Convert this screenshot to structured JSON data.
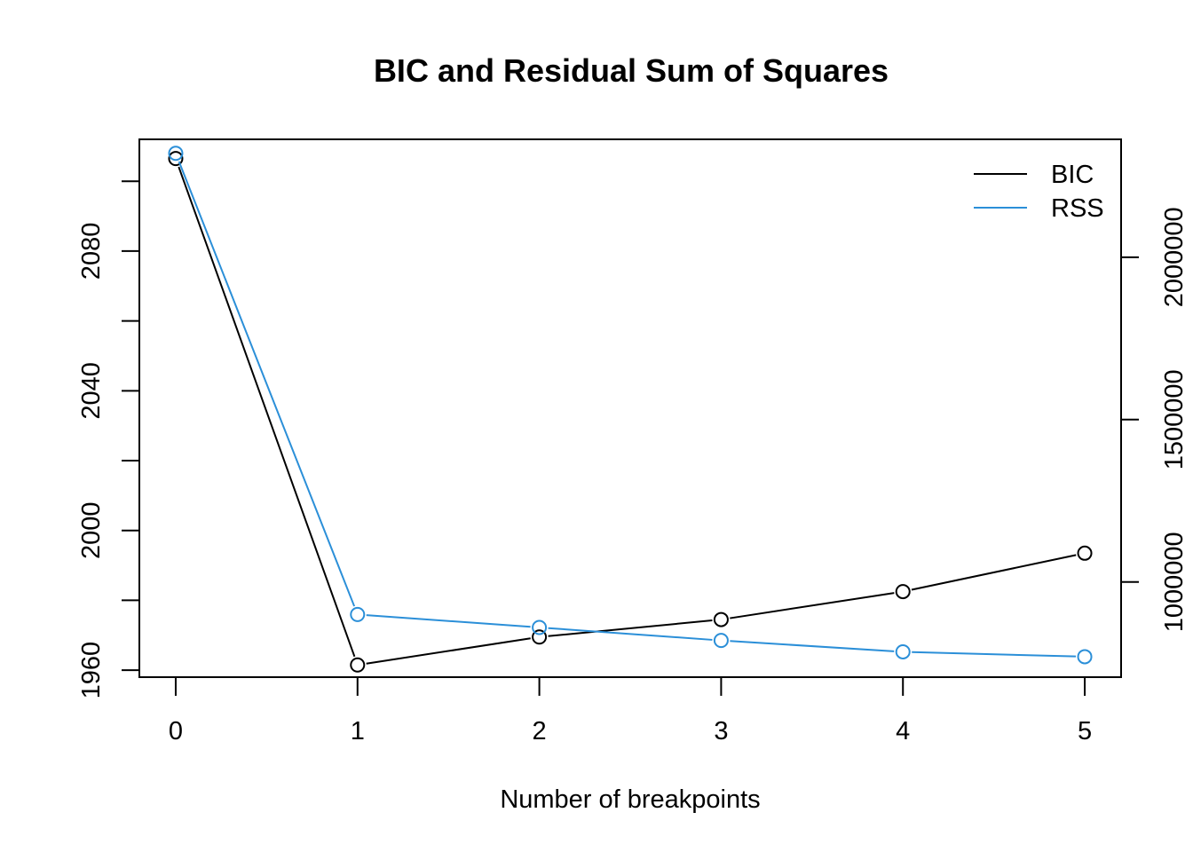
{
  "chart_data": {
    "type": "line",
    "title": "BIC and Residual Sum of Squares",
    "xlabel": "Number of breakpoints",
    "ylabel": "",
    "ylabel_right": "",
    "x": [
      0,
      1,
      2,
      3,
      4,
      5
    ],
    "xlim": [
      -0.2,
      5.2
    ],
    "ylim": [
      1958,
      2112
    ],
    "ylim_right": [
      707000,
      2363000
    ],
    "x_ticks": [
      0,
      1,
      2,
      3,
      4,
      5
    ],
    "y_ticks": [
      1960,
      1980,
      2000,
      2020,
      2040,
      2060,
      2080,
      2100
    ],
    "y_tick_labels": [
      "1960",
      "",
      "2000",
      "",
      "2040",
      "",
      "2080",
      ""
    ],
    "y_ticks_right": [
      1000000,
      1500000,
      2000000
    ],
    "y_tick_labels_right": [
      "1000000",
      "1500000",
      "2000000"
    ],
    "series": [
      {
        "name": "BIC",
        "axis": "left",
        "color": "#000000",
        "values": [
          2106.5,
          1961.5,
          1969.5,
          1974.5,
          1982.5,
          1993.5
        ]
      },
      {
        "name": "RSS",
        "axis": "right",
        "color": "#2B8FD8",
        "values": [
          2320000,
          900000,
          860000,
          820000,
          785000,
          770000
        ]
      }
    ],
    "legend": {
      "position": "top-right",
      "entries": [
        "BIC",
        "RSS"
      ]
    },
    "grid": false
  }
}
